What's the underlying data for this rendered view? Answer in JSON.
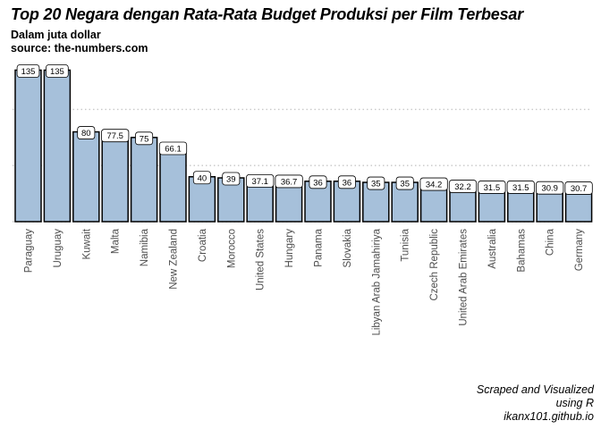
{
  "chart_data": {
    "type": "bar",
    "title": "Top 20 Negara dengan Rata-Rata Budget Produksi per Film Terbesar",
    "subtitle_lines": [
      "Dalam juta dollar",
      "source: the-numbers.com"
    ],
    "caption_lines": [
      "Scraped and Visualized",
      "using R",
      "ikanx101.github.io"
    ],
    "categories": [
      "Paraguay",
      "Uruguay",
      "Kuwait",
      "Malta",
      "Namibia",
      "New Zealand",
      "Croatia",
      "Morocco",
      "United States",
      "Hungary",
      "Panama",
      "Slovakia",
      "Libyan Arab Jamahiriya",
      "Tunisia",
      "Czech Republic",
      "United Arab Emirates",
      "Australia",
      "Bahamas",
      "China",
      "Germany"
    ],
    "values": [
      135,
      135,
      80,
      77.5,
      75,
      66.1,
      40,
      39,
      37.1,
      36.7,
      36,
      36,
      35,
      35,
      34.2,
      32.2,
      31.5,
      31.5,
      30.9,
      30.7
    ],
    "data_labels": [
      "135",
      "135",
      "80",
      "77.5",
      "75",
      "66.1",
      "40",
      "39",
      "37.1",
      "36.7",
      "36",
      "36",
      "35",
      "35",
      "34.2",
      "32.2",
      "31.5",
      "31.5",
      "30.9",
      "30.7"
    ],
    "ylim": [
      0,
      141.75
    ],
    "gridlines": [
      0,
      50,
      100
    ],
    "y_axis_labels_shown": false,
    "grid": "horizontal dotted",
    "bar_color": "#a6c0da",
    "bar_outline_color": "#000000"
  }
}
